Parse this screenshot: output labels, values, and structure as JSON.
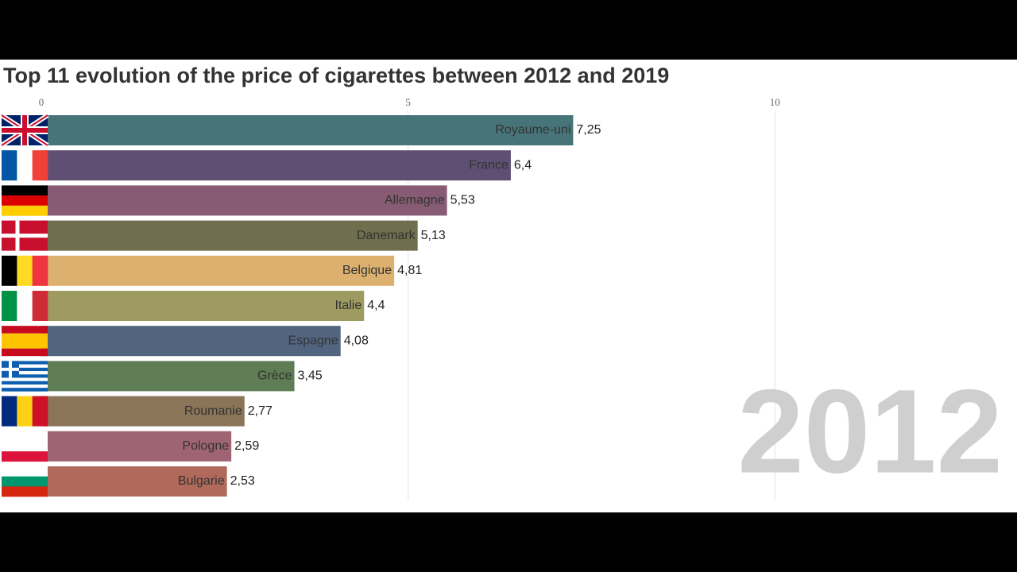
{
  "chart_data": {
    "type": "bar",
    "orientation": "horizontal",
    "title": "Top 11 evolution of the price of cigarettes between 2012 and 2019",
    "year": "2012",
    "categories": [
      "Royaume-uni",
      "France",
      "Allemagne",
      "Danemark",
      "Belgique",
      "Italie",
      "Espagne",
      "Grèce",
      "Roumanie",
      "Pologne",
      "Bulgarie"
    ],
    "values": [
      7.25,
      6.4,
      5.53,
      5.13,
      4.81,
      4.4,
      4.08,
      3.45,
      2.77,
      2.59,
      2.53
    ],
    "value_labels": [
      "7,25",
      "6,4",
      "5,53",
      "5,13",
      "4,81",
      "4,4",
      "4,08",
      "3,45",
      "2,77",
      "2,59",
      "2,53"
    ],
    "colors": [
      "#467478",
      "#5f5073",
      "#875b73",
      "#6f6e4d",
      "#dcb06e",
      "#9d9b5f",
      "#526580",
      "#5f7d55",
      "#8a7558",
      "#9f6474",
      "#b0695a"
    ],
    "xlim": [
      0,
      13.3
    ],
    "xticks": [
      0,
      5,
      10
    ],
    "grid": true
  }
}
